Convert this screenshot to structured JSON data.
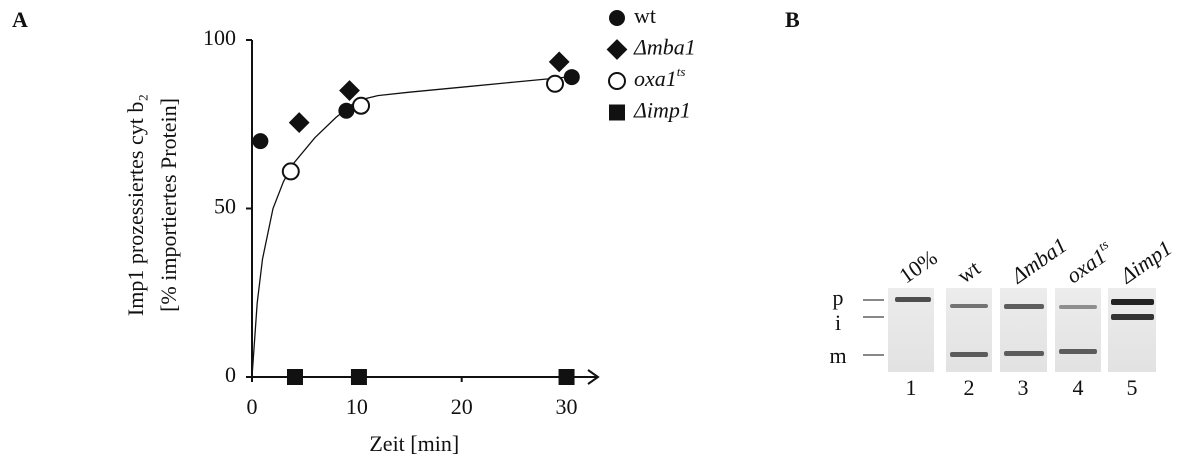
{
  "panel_a_label": "A",
  "panel_b_label": "B",
  "chart_data": {
    "type": "scatter",
    "xlabel": "Zeit [min]",
    "ylabel": [
      "Imp1 prozessiertes cyt b₂",
      "[% importiertes Protein]"
    ],
    "xlim": [
      0,
      33
    ],
    "ylim": [
      0,
      100
    ],
    "xticks": [
      0,
      10,
      20,
      30
    ],
    "yticks": [
      0,
      50,
      100
    ],
    "series": [
      {
        "name": "wt",
        "marker": "circle",
        "color": "#111111",
        "x": [
          0.8,
          9.0,
          30.5
        ],
        "y": [
          70,
          79,
          89
        ]
      },
      {
        "name": "Δmba1",
        "marker": "diamond",
        "color": "#111111",
        "x": [
          4.5,
          9.3,
          29.3
        ],
        "y": [
          75.5,
          85,
          93.5
        ]
      },
      {
        "name": "oxa1",
        "name_sup": "ts",
        "marker": "open-circle",
        "color": "#111111",
        "x": [
          3.7,
          10.4,
          28.9
        ],
        "y": [
          61,
          80.5,
          87
        ]
      },
      {
        "name": "Δimp1",
        "marker": "square",
        "color": "#111111",
        "x": [
          4.1,
          10.2,
          30.0
        ],
        "y": [
          0,
          0,
          0
        ]
      }
    ],
    "fit": {
      "x": [
        0,
        0.5,
        1,
        2,
        3,
        4,
        6,
        8,
        10,
        12,
        15,
        20,
        25,
        30
      ],
      "y": [
        0,
        22,
        35,
        50,
        58,
        63.5,
        71,
        77,
        82,
        83.5,
        84.5,
        86,
        87.5,
        89
      ]
    }
  },
  "gel": {
    "band_labels": [
      "p",
      "i",
      "m"
    ],
    "lanes": [
      {
        "header": "10%",
        "number": "1"
      },
      {
        "header": "wt",
        "number": "2"
      },
      {
        "header": "Δmba1",
        "number": "3"
      },
      {
        "header": "oxa1",
        "header_sup": "ts",
        "number": "4"
      },
      {
        "header": "Δimp1",
        "number": "5"
      }
    ]
  }
}
